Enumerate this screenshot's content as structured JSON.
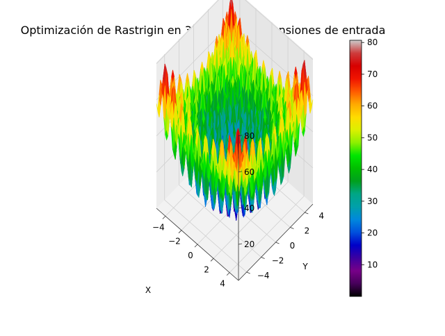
{
  "chart_data": {
    "type": "surface3d",
    "title": "Optimización de Rastrigin en 3D con dos dimensiones de entrada",
    "xlabel": "X",
    "ylabel": "Y",
    "zlabel": "",
    "function": "Rastrigin",
    "x_range": [
      -5.12,
      5.12
    ],
    "y_range": [
      -5.12,
      5.12
    ],
    "zlim": [
      0,
      80.7
    ],
    "x_ticks": [
      -4,
      -2,
      0,
      2,
      4
    ],
    "y_ticks": [
      -4,
      -2,
      0,
      2,
      4
    ],
    "z_ticks": [
      20,
      40,
      60,
      80
    ],
    "colormap": "nipy_spectral",
    "colorbar": {
      "range": [
        0,
        80.7
      ],
      "ticks": [
        10,
        20,
        30,
        40,
        50,
        60,
        70,
        80
      ]
    },
    "grid": true
  }
}
